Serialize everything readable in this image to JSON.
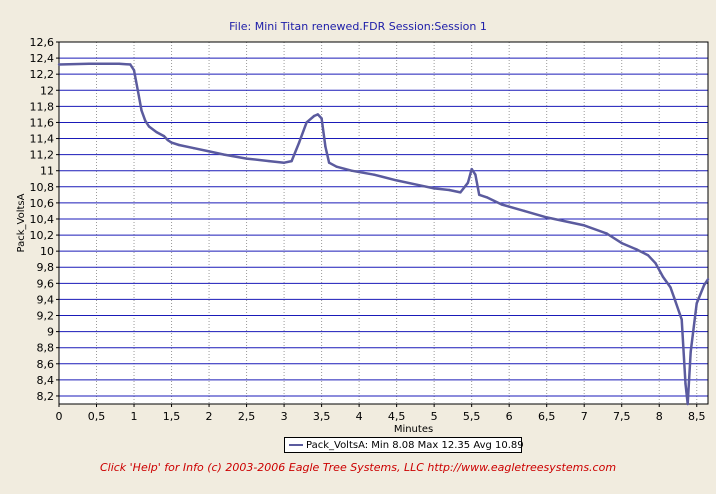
{
  "chart_data": {
    "type": "line",
    "title": "File: Mini Titan renewed.FDR   Session:Session 1",
    "xlabel": "Minutes",
    "ylabel": "Pack_VoltsA",
    "xlim": [
      0,
      8.65
    ],
    "ylim": [
      8.1,
      12.6
    ],
    "xticks": [
      "0",
      "0,5",
      "1",
      "1,5",
      "2",
      "2,5",
      "3",
      "3,5",
      "4",
      "4,5",
      "5",
      "5,5",
      "6",
      "6,5",
      "7",
      "7,5",
      "8",
      "8,5"
    ],
    "yticks": [
      "8,2",
      "8,4",
      "8,6",
      "8,8",
      "9",
      "9,2",
      "9,4",
      "9,6",
      "9,8",
      "10",
      "10,2",
      "10,4",
      "10,6",
      "10,8",
      "11",
      "11,2",
      "11,4",
      "11,6",
      "11,8",
      "12",
      "12,2",
      "12,4",
      "12,6"
    ],
    "grid": true,
    "colors": {
      "line": "#5b5b9e",
      "grid_major": "#1a1ab8",
      "grid_minor": "#9a9a9a",
      "plot_bg": "#ffffff"
    },
    "series": [
      {
        "name": "Pack_VoltsA",
        "x": [
          0,
          0.4,
          0.8,
          0.95,
          1.0,
          1.05,
          1.1,
          1.15,
          1.2,
          1.3,
          1.4,
          1.45,
          1.5,
          1.6,
          1.8,
          2.0,
          2.2,
          2.5,
          2.8,
          3.0,
          3.1,
          3.2,
          3.3,
          3.4,
          3.45,
          3.5,
          3.55,
          3.6,
          3.7,
          3.9,
          4.2,
          4.5,
          4.8,
          5.0,
          5.2,
          5.35,
          5.45,
          5.5,
          5.55,
          5.6,
          5.7,
          5.9,
          6.2,
          6.5,
          7.0,
          7.3,
          7.5,
          7.7,
          7.85,
          7.95,
          8.05,
          8.15,
          8.2,
          8.3,
          8.35,
          8.38,
          8.42,
          8.5,
          8.6,
          8.65
        ],
        "y": [
          12.32,
          12.33,
          12.33,
          12.32,
          12.25,
          12.0,
          11.75,
          11.62,
          11.55,
          11.48,
          11.43,
          11.38,
          11.35,
          11.32,
          11.28,
          11.24,
          11.2,
          11.15,
          11.12,
          11.1,
          11.12,
          11.35,
          11.6,
          11.68,
          11.7,
          11.65,
          11.3,
          11.1,
          11.05,
          11.0,
          10.95,
          10.88,
          10.82,
          10.78,
          10.76,
          10.73,
          10.85,
          11.02,
          10.95,
          10.7,
          10.67,
          10.58,
          10.5,
          10.42,
          10.32,
          10.22,
          10.1,
          10.02,
          9.95,
          9.85,
          9.68,
          9.55,
          9.42,
          9.15,
          8.35,
          8.1,
          8.75,
          9.35,
          9.58,
          9.65
        ]
      }
    ],
    "legend": {
      "position": "bottom",
      "text": "Pack_VoltsA:  Min 8.08 Max 12.35 Avg 10.89"
    }
  },
  "footer": "Click 'Help' for Info  (c) 2003-2006 Eagle Tree Systems, LLC     http://www.eagletreesystems.com"
}
